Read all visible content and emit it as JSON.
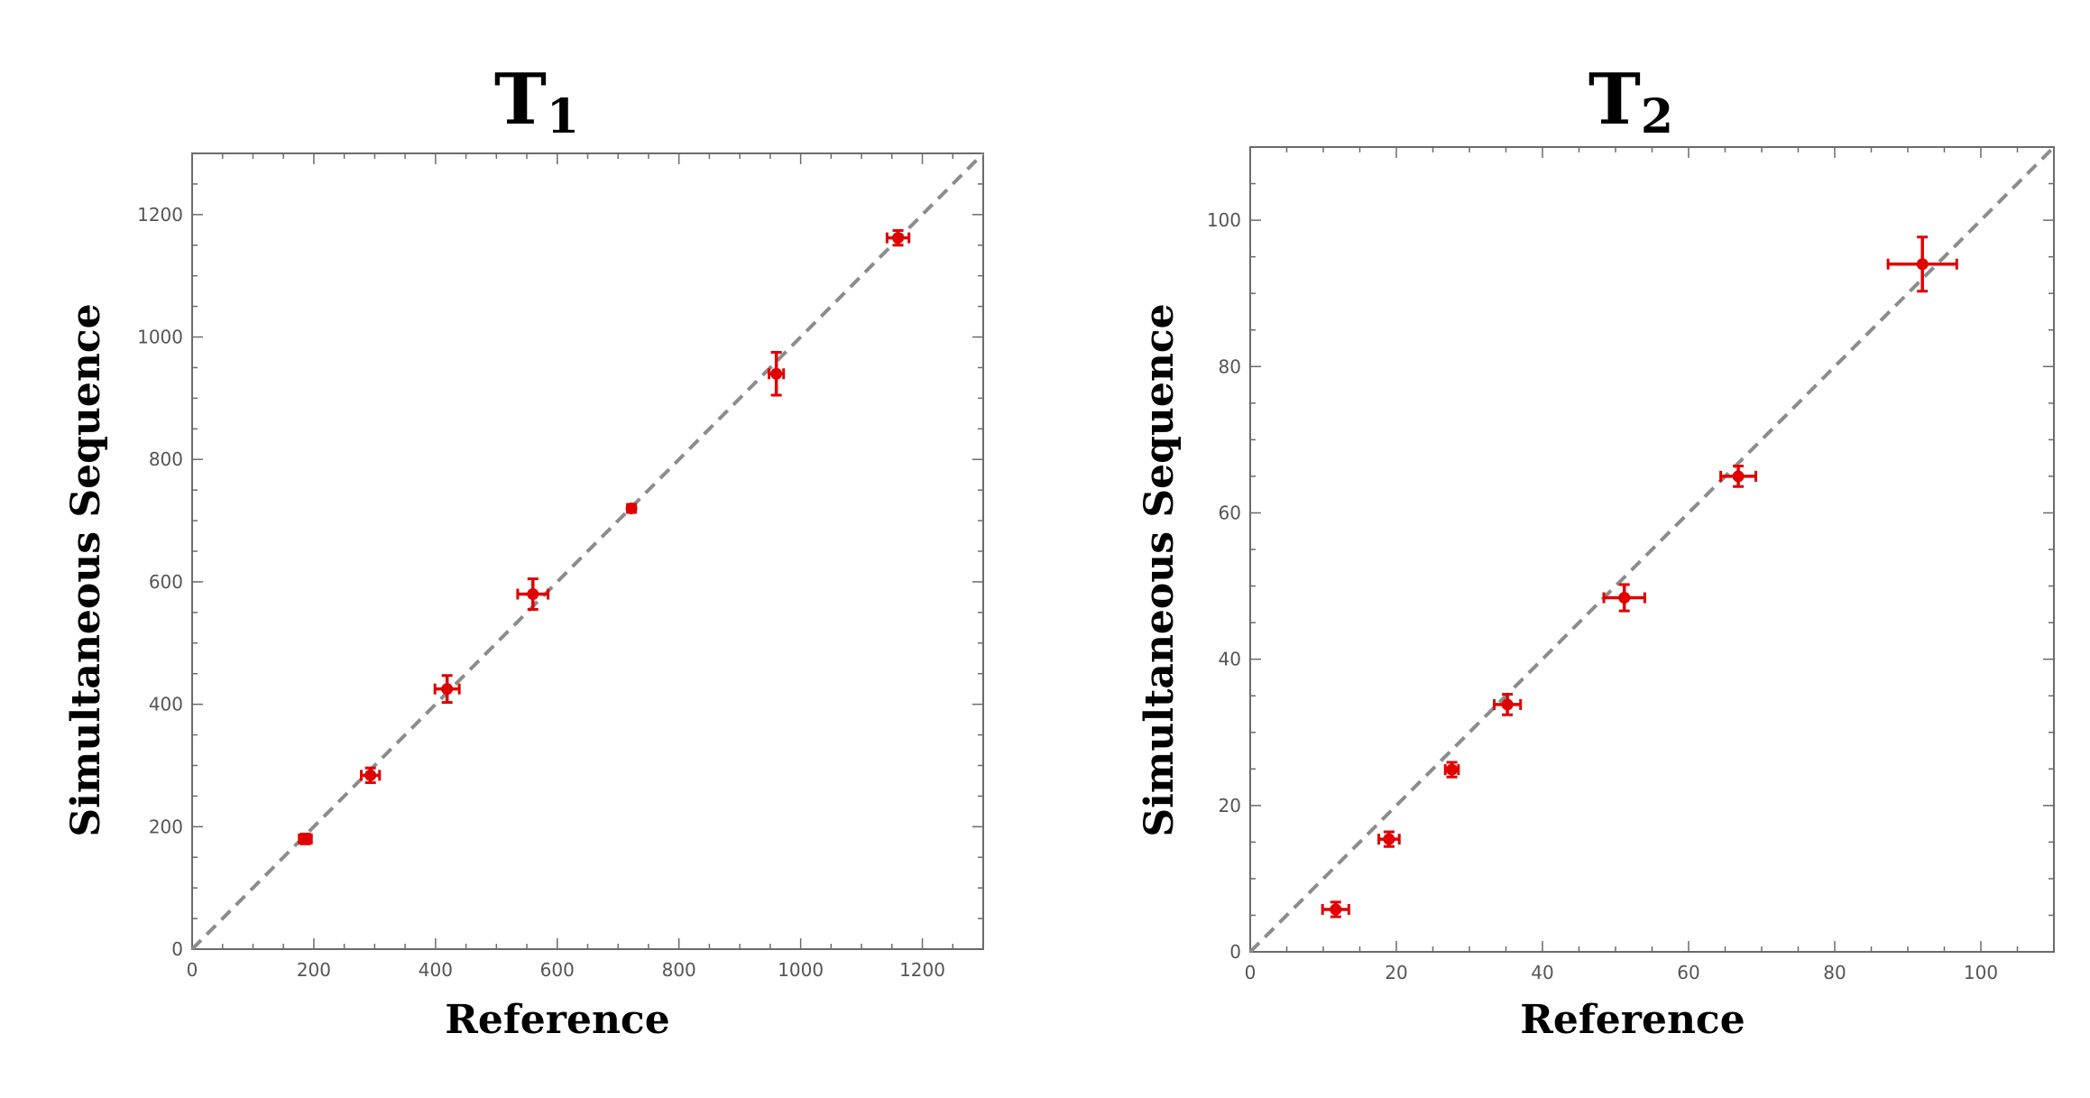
{
  "chart_data": [
    {
      "type": "scatter",
      "title": "T",
      "title_subscript": "1",
      "xlabel": "Reference",
      "ylabel": "Simultaneous Sequence",
      "xlim": [
        0,
        1300
      ],
      "ylim": [
        0,
        1300
      ],
      "xticks": [
        0,
        200,
        400,
        600,
        800,
        1000,
        1200
      ],
      "yticks": [
        0,
        200,
        400,
        600,
        800,
        1000,
        1200
      ],
      "xtick_labels": [
        "0",
        "200",
        "400",
        "600",
        "800",
        "1000",
        "1200"
      ],
      "ytick_labels": [
        "0",
        "200",
        "400",
        "600",
        "800",
        "1000",
        "1200"
      ],
      "minor_step": 50,
      "reference_line": "identity (y = x), dashed",
      "colors": {
        "points": "#e00000",
        "reference_line": "#8c8c8c",
        "frame": "#6b6b6b"
      },
      "points": [
        {
          "x": 186,
          "y": 180,
          "xerr": 10,
          "yerr": 8
        },
        {
          "x": 293,
          "y": 284,
          "xerr": 15,
          "yerr": 12
        },
        {
          "x": 419,
          "y": 425,
          "xerr": 20,
          "yerr": 22
        },
        {
          "x": 560,
          "y": 580,
          "xerr": 25,
          "yerr": 25
        },
        {
          "x": 722,
          "y": 720,
          "xerr": 6,
          "yerr": 6
        },
        {
          "x": 960,
          "y": 940,
          "xerr": 12,
          "yerr": 35
        },
        {
          "x": 1160,
          "y": 1162,
          "xerr": 18,
          "yerr": 12
        }
      ]
    },
    {
      "type": "scatter",
      "title": "T",
      "title_subscript": "2",
      "xlabel": "Reference",
      "ylabel": "Simultaneous Sequence",
      "xlim": [
        0,
        110
      ],
      "ylim": [
        0,
        110
      ],
      "xticks": [
        0,
        20,
        40,
        60,
        80,
        100
      ],
      "yticks": [
        0,
        20,
        40,
        60,
        80,
        100
      ],
      "xtick_labels": [
        "0",
        "20",
        "40",
        "60",
        "80",
        "100"
      ],
      "ytick_labels": [
        "0",
        "20",
        "40",
        "60",
        "80",
        "100"
      ],
      "minor_step": 5,
      "reference_line": "identity (y = x), dashed",
      "colors": {
        "points": "#e00000",
        "reference_line": "#8c8c8c",
        "frame": "#6b6b6b"
      },
      "points": [
        {
          "x": 11.7,
          "y": 5.8,
          "xerr": 1.8,
          "yerr": 1.0
        },
        {
          "x": 19.0,
          "y": 15.4,
          "xerr": 1.4,
          "yerr": 1.0
        },
        {
          "x": 27.6,
          "y": 24.9,
          "xerr": 0.9,
          "yerr": 1.0
        },
        {
          "x": 35.2,
          "y": 33.8,
          "xerr": 1.8,
          "yerr": 1.4
        },
        {
          "x": 51.2,
          "y": 48.4,
          "xerr": 2.8,
          "yerr": 1.8
        },
        {
          "x": 66.8,
          "y": 65.0,
          "xerr": 2.4,
          "yerr": 1.4
        },
        {
          "x": 92.0,
          "y": 94.0,
          "xerr": 4.7,
          "yerr": 3.7
        }
      ]
    }
  ]
}
